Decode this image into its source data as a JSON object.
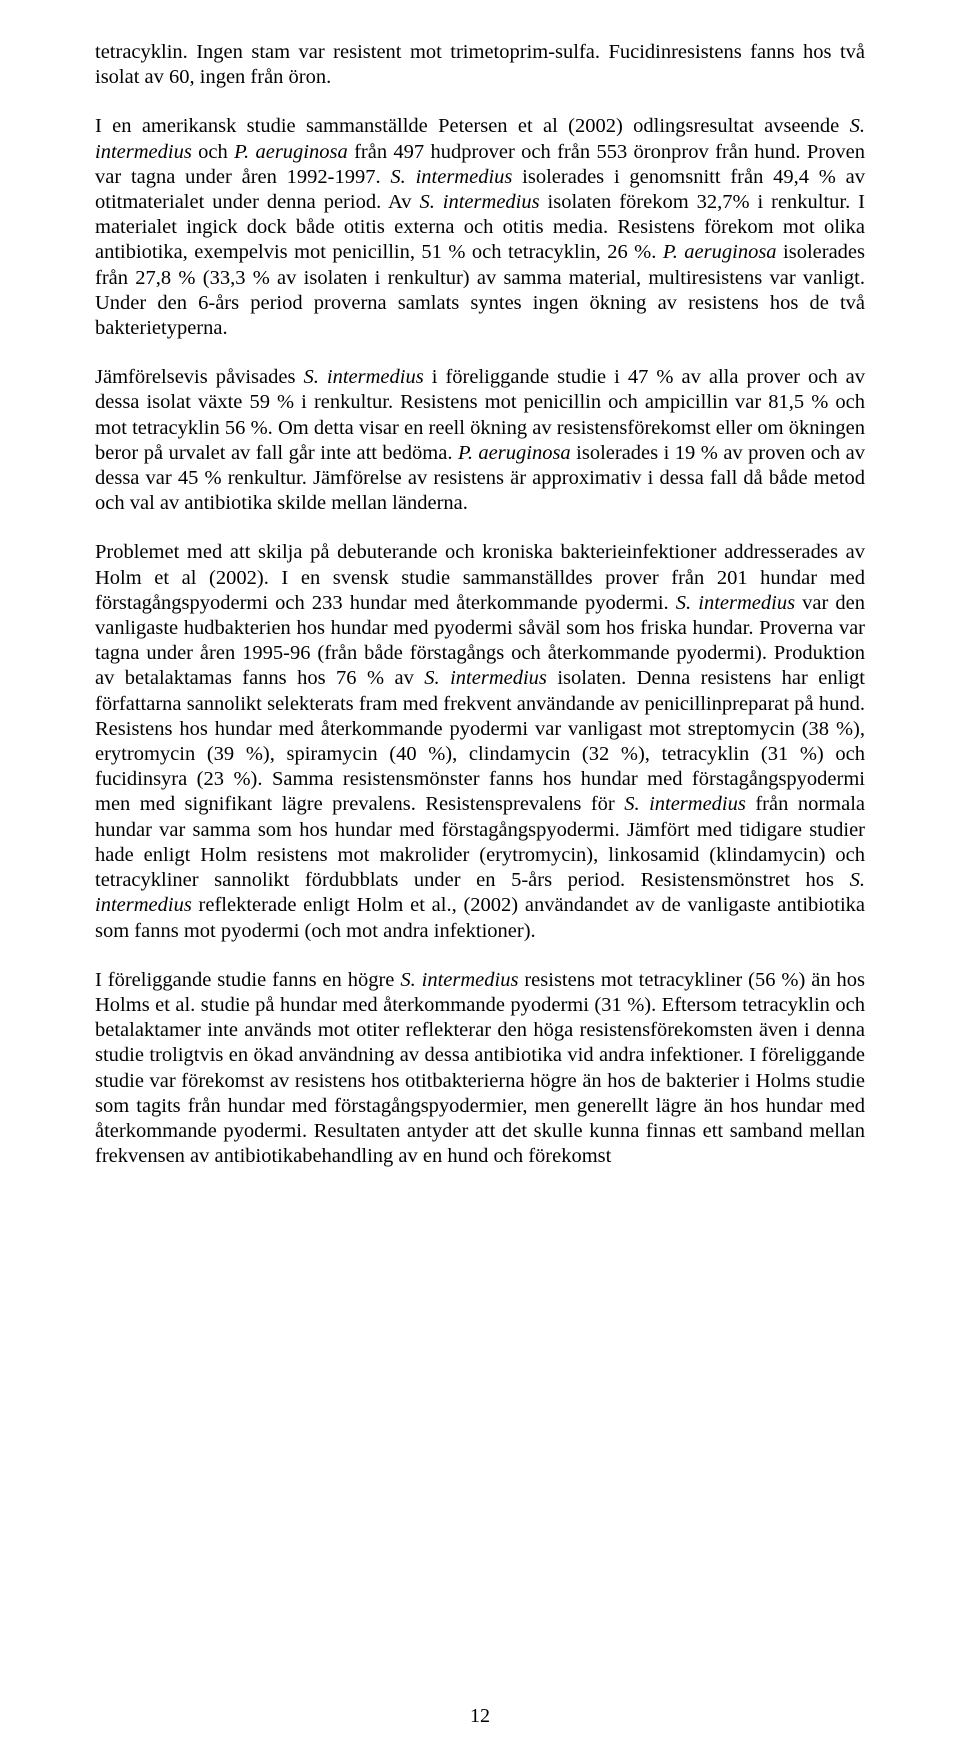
{
  "page_number": "12",
  "p1": {
    "a": "tetracyklin. Ingen stam var resistent mot trimetoprim-sulfa. Fucidinresistens fanns hos två isolat av 60, ingen från öron."
  },
  "p2": {
    "a": "I en amerikansk studie sammanställde Petersen et al (2002) odlingsresultat avseende ",
    "b": "S. intermedius",
    "c": " och ",
    "d": "P. aeruginosa",
    "e": " från 497 hudprover och från 553 öronprov från hund. Proven var tagna under åren 1992-1997. ",
    "f": "S. intermedius",
    "g": " isolerades i genomsnitt från 49,4 % av otitmaterialet under denna period. Av ",
    "h": "S. intermedius",
    "i": " isolaten förekom 32,7% i renkultur. I materialet ingick dock både otitis externa och otitis media. Resistens förekom mot olika antibiotika, exempelvis mot penicillin, 51 % och tetracyklin, 26 %. ",
    "j": "P. aeruginosa",
    "k": " isolerades från 27,8 % (33,3 % av isolaten i renkultur) av samma material, multiresistens var vanligt. Under den 6-års period proverna samlats syntes ingen ökning av resistens hos de två bakterietyperna."
  },
  "p3": {
    "a": "Jämförelsevis påvisades ",
    "b": "S. intermedius",
    "c": " i föreliggande studie i 47 % av alla prover och av dessa isolat växte 59 % i renkultur. Resistens mot penicillin och ampicillin var 81,5 % och mot tetracyklin 56 %. Om detta visar en reell ökning av resistensförekomst eller om ökningen beror på urvalet av fall går inte att bedöma. ",
    "d": "P. aeruginosa",
    "e": " isolerades i 19 % av proven och av dessa var 45 % renkultur. Jämförelse av resistens är approximativ i dessa fall då både metod och val av antibiotika skilde mellan länderna."
  },
  "p4": {
    "a": "Problemet med att skilja på debuterande och kroniska bakterieinfektioner addresserades av Holm et al (2002). I en svensk studie sammanställdes prover från 201 hundar med förstagångspyodermi och 233 hundar med återkommande pyodermi. ",
    "b": "S. intermedius",
    "c": " var den vanligaste hudbakterien hos hundar med pyodermi såväl som hos friska hundar. Proverna var tagna under åren 1995-96 (från både förstagångs och återkommande pyodermi). Produktion av betalaktamas fanns hos 76 % av ",
    "d": "S. intermedius",
    "e": " isolaten. Denna resistens har enligt författarna sannolikt selekterats fram med frekvent användande av penicillinpreparat på hund. Resistens hos hundar med återkommande pyodermi var vanligast mot streptomycin (38 %), erytromycin (39 %), spiramycin (40 %), clindamycin (32 %), tetracyklin (31 %) och fucidinsyra (23 %). Samma resistensmönster fanns hos hundar med förstagångspyodermi men med signifikant lägre prevalens. Resistensprevalens för ",
    "f": "S. intermedius",
    "g": " från normala hundar var samma som hos hundar med förstagångspyodermi. Jämfört med tidigare studier hade enligt Holm resistens mot makrolider (erytromycin), linkosamid (klindamycin) och tetracykliner sannolikt fördubblats under en 5-års period. Resistensmönstret hos ",
    "h": "S. intermedius",
    "i": " reflekterade enligt Holm et al., (2002) användandet av de vanligaste antibiotika som fanns mot pyodermi (och mot andra infektioner)."
  },
  "p5": {
    "a": "I föreliggande studie fanns en högre ",
    "b": "S. intermedius",
    "c": " resistens mot tetracykliner (56 %) än hos Holms et al. studie på hundar med återkommande pyodermi (31 %). Eftersom tetracyklin och betalaktamer inte används mot otiter reflekterar den höga resistensförekomsten även i denna studie troligtvis en ökad användning av dessa antibiotika vid andra infektioner. I föreliggande studie var förekomst av resistens hos otitbakterierna högre än hos de bakterier i Holms studie som tagits från hundar med förstagångspyodermier, men generellt lägre än hos hundar med återkommande pyodermi. Resultaten antyder att det skulle kunna finnas ett samband mellan frekvensen av antibiotikabehandling av en hund och förekomst"
  }
}
